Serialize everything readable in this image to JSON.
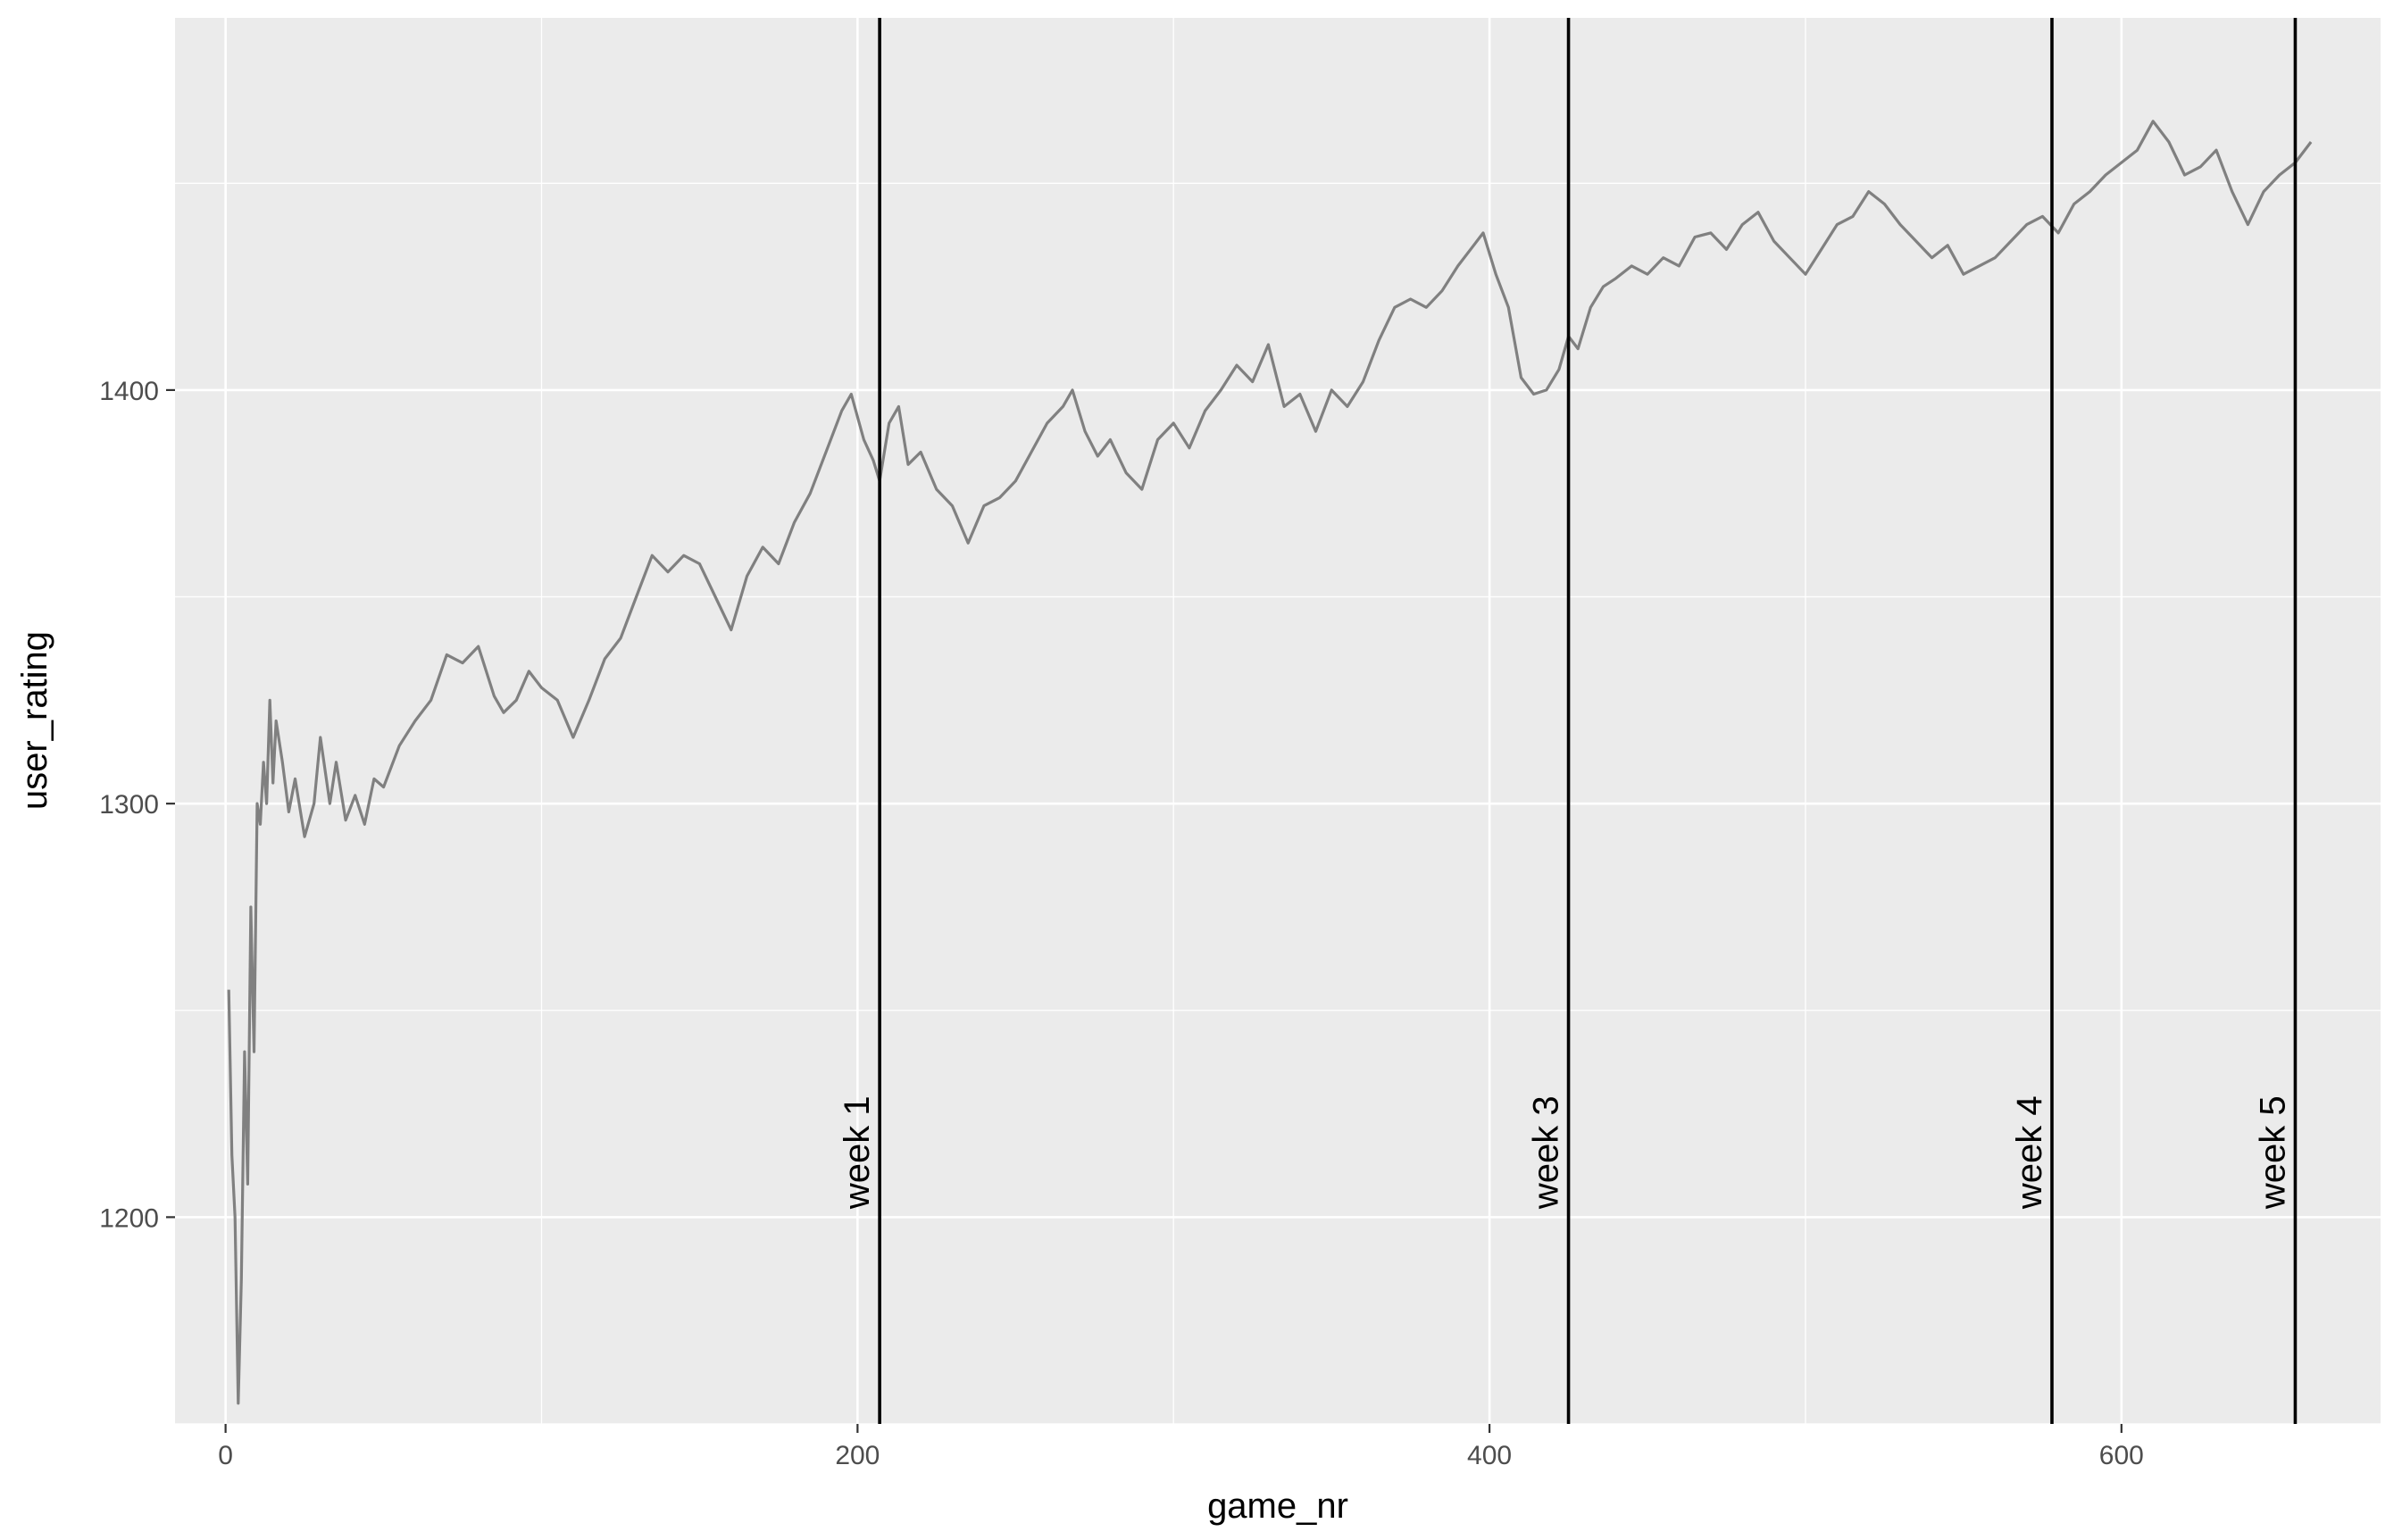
{
  "chart_data": {
    "type": "line",
    "title": "",
    "xlabel": "game_nr",
    "ylabel": "user_rating",
    "xlim": [
      -16,
      682
    ],
    "ylim": [
      1150,
      1490
    ],
    "x_major_ticks": [
      0,
      200,
      400,
      600
    ],
    "x_minor_ticks": [
      100,
      300,
      500
    ],
    "y_major_ticks": [
      1200,
      1300,
      1400
    ],
    "y_minor_ticks": [
      1150,
      1250,
      1350,
      1450
    ],
    "grid": true,
    "legend": "none",
    "line_color": "#808080",
    "series": [
      {
        "values": [
          [
            1,
            1255
          ],
          [
            2,
            1215
          ],
          [
            3,
            1200
          ],
          [
            4,
            1155
          ],
          [
            5,
            1185
          ],
          [
            6,
            1240
          ],
          [
            7,
            1208
          ],
          [
            8,
            1275
          ],
          [
            9,
            1240
          ],
          [
            10,
            1300
          ],
          [
            11,
            1295
          ],
          [
            12,
            1310
          ],
          [
            13,
            1300
          ],
          [
            14,
            1325
          ],
          [
            15,
            1305
          ],
          [
            16,
            1320
          ],
          [
            18,
            1310
          ],
          [
            20,
            1298
          ],
          [
            22,
            1306
          ],
          [
            25,
            1292
          ],
          [
            28,
            1300
          ],
          [
            30,
            1316
          ],
          [
            33,
            1300
          ],
          [
            35,
            1310
          ],
          [
            38,
            1296
          ],
          [
            41,
            1302
          ],
          [
            44,
            1295
          ],
          [
            47,
            1306
          ],
          [
            50,
            1304
          ],
          [
            55,
            1314
          ],
          [
            60,
            1320
          ],
          [
            65,
            1325
          ],
          [
            70,
            1336
          ],
          [
            75,
            1334
          ],
          [
            80,
            1338
          ],
          [
            85,
            1326
          ],
          [
            88,
            1322
          ],
          [
            92,
            1325
          ],
          [
            96,
            1332
          ],
          [
            100,
            1328
          ],
          [
            105,
            1325
          ],
          [
            110,
            1316
          ],
          [
            115,
            1325
          ],
          [
            120,
            1335
          ],
          [
            125,
            1340
          ],
          [
            130,
            1350
          ],
          [
            135,
            1360
          ],
          [
            140,
            1356
          ],
          [
            145,
            1360
          ],
          [
            150,
            1358
          ],
          [
            155,
            1350
          ],
          [
            160,
            1342
          ],
          [
            165,
            1355
          ],
          [
            170,
            1362
          ],
          [
            175,
            1358
          ],
          [
            180,
            1368
          ],
          [
            185,
            1375
          ],
          [
            190,
            1385
          ],
          [
            195,
            1395
          ],
          [
            198,
            1399
          ],
          [
            202,
            1388
          ],
          [
            205,
            1383
          ],
          [
            207,
            1378
          ],
          [
            210,
            1392
          ],
          [
            213,
            1396
          ],
          [
            216,
            1382
          ],
          [
            220,
            1385
          ],
          [
            225,
            1376
          ],
          [
            230,
            1372
          ],
          [
            235,
            1363
          ],
          [
            240,
            1372
          ],
          [
            245,
            1374
          ],
          [
            250,
            1378
          ],
          [
            255,
            1385
          ],
          [
            260,
            1392
          ],
          [
            265,
            1396
          ],
          [
            268,
            1400
          ],
          [
            272,
            1390
          ],
          [
            276,
            1384
          ],
          [
            280,
            1388
          ],
          [
            285,
            1380
          ],
          [
            290,
            1376
          ],
          [
            295,
            1388
          ],
          [
            300,
            1392
          ],
          [
            305,
            1386
          ],
          [
            310,
            1395
          ],
          [
            315,
            1400
          ],
          [
            320,
            1406
          ],
          [
            325,
            1402
          ],
          [
            330,
            1411
          ],
          [
            335,
            1396
          ],
          [
            340,
            1399
          ],
          [
            345,
            1390
          ],
          [
            350,
            1400
          ],
          [
            355,
            1396
          ],
          [
            360,
            1402
          ],
          [
            365,
            1412
          ],
          [
            370,
            1420
          ],
          [
            375,
            1422
          ],
          [
            380,
            1420
          ],
          [
            385,
            1424
          ],
          [
            390,
            1430
          ],
          [
            395,
            1435
          ],
          [
            398,
            1438
          ],
          [
            402,
            1428
          ],
          [
            406,
            1420
          ],
          [
            410,
            1403
          ],
          [
            414,
            1399
          ],
          [
            418,
            1400
          ],
          [
            422,
            1405
          ],
          [
            425,
            1413
          ],
          [
            428,
            1410
          ],
          [
            432,
            1420
          ],
          [
            436,
            1425
          ],
          [
            440,
            1427
          ],
          [
            445,
            1430
          ],
          [
            450,
            1428
          ],
          [
            455,
            1432
          ],
          [
            460,
            1430
          ],
          [
            465,
            1437
          ],
          [
            470,
            1438
          ],
          [
            475,
            1434
          ],
          [
            480,
            1440
          ],
          [
            485,
            1443
          ],
          [
            490,
            1436
          ],
          [
            495,
            1432
          ],
          [
            500,
            1428
          ],
          [
            505,
            1434
          ],
          [
            510,
            1440
          ],
          [
            515,
            1442
          ],
          [
            520,
            1448
          ],
          [
            525,
            1445
          ],
          [
            530,
            1440
          ],
          [
            535,
            1436
          ],
          [
            540,
            1432
          ],
          [
            545,
            1435
          ],
          [
            550,
            1428
          ],
          [
            555,
            1430
          ],
          [
            560,
            1432
          ],
          [
            565,
            1436
          ],
          [
            570,
            1440
          ],
          [
            575,
            1442
          ],
          [
            580,
            1438
          ],
          [
            585,
            1445
          ],
          [
            590,
            1448
          ],
          [
            595,
            1452
          ],
          [
            600,
            1455
          ],
          [
            605,
            1458
          ],
          [
            610,
            1465
          ],
          [
            615,
            1460
          ],
          [
            620,
            1452
          ],
          [
            625,
            1454
          ],
          [
            630,
            1458
          ],
          [
            635,
            1448
          ],
          [
            640,
            1440
          ],
          [
            645,
            1448
          ],
          [
            650,
            1452
          ],
          [
            655,
            1455
          ],
          [
            660,
            1460
          ]
        ]
      }
    ],
    "vlines": [
      {
        "x": 207,
        "label": "week 1"
      },
      {
        "x": 425,
        "label": "week 3"
      },
      {
        "x": 578,
        "label": "week 4"
      },
      {
        "x": 655,
        "label": "week 5"
      }
    ],
    "vline_label_y": 1202
  }
}
